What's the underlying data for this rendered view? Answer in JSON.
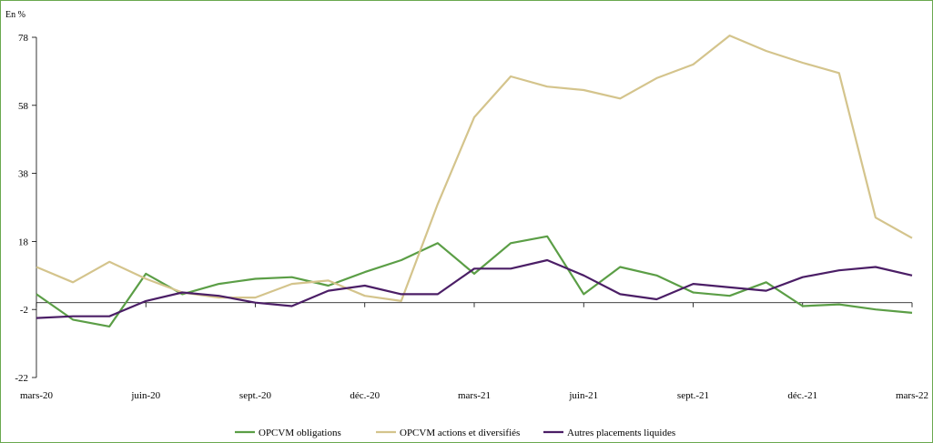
{
  "chart_data": {
    "type": "line",
    "unit_label": "En %",
    "ylim": [
      -22,
      78
    ],
    "y_ticks": [
      -22,
      -2,
      18,
      38,
      58,
      78
    ],
    "x_tick_labels": [
      "mars-20",
      "juin-20",
      "sept.-20",
      "déc.-20",
      "mars-21",
      "juin-21",
      "sept.-21",
      "déc.-21",
      "mars-22"
    ],
    "x": [
      "mars-20",
      "avr.-20",
      "mai-20",
      "juin-20",
      "juil.-20",
      "août-20",
      "sept.-20",
      "oct.-20",
      "nov.-20",
      "déc.-20",
      "janv.-21",
      "févr.-21",
      "mars-21",
      "avr.-21",
      "mai-21",
      "juin-21",
      "juil.-21",
      "août-21",
      "sept.-21",
      "oct.-21",
      "nov.-21",
      "déc.-21",
      "janv.-22",
      "févr.-22",
      "mars-22"
    ],
    "legend_position": "bottom",
    "grid": false,
    "series": [
      {
        "name": "OPCVM obligations",
        "color": "#5b9e46",
        "values": [
          2.5,
          -5,
          -7,
          8.5,
          2.5,
          5.5,
          7,
          7.5,
          5,
          9,
          12.5,
          17.5,
          8.5,
          17.5,
          19.5,
          2.5,
          10.5,
          8,
          3,
          2,
          6,
          -1,
          -0.5,
          -2,
          -3
        ]
      },
      {
        "name": "OPCVM actions et diversifiés",
        "color": "#d4c48c",
        "values": [
          10.5,
          6,
          12,
          7,
          3,
          1.5,
          1.5,
          5.5,
          6.5,
          2,
          0.5,
          29,
          54.5,
          66.5,
          63.5,
          62.5,
          60,
          66,
          70,
          78.5,
          74,
          70.5,
          67.5,
          25,
          19
        ]
      },
      {
        "name": "Autres placements liquides",
        "color": "#4b1e66",
        "values": [
          -4.5,
          -4,
          -4,
          0.5,
          3,
          2,
          0,
          -1,
          3.5,
          5,
          2.5,
          2.5,
          10,
          10,
          12.5,
          8,
          2.5,
          1,
          5.5,
          4.5,
          3.5,
          7.5,
          9.5,
          10.5,
          8
        ]
      }
    ]
  }
}
